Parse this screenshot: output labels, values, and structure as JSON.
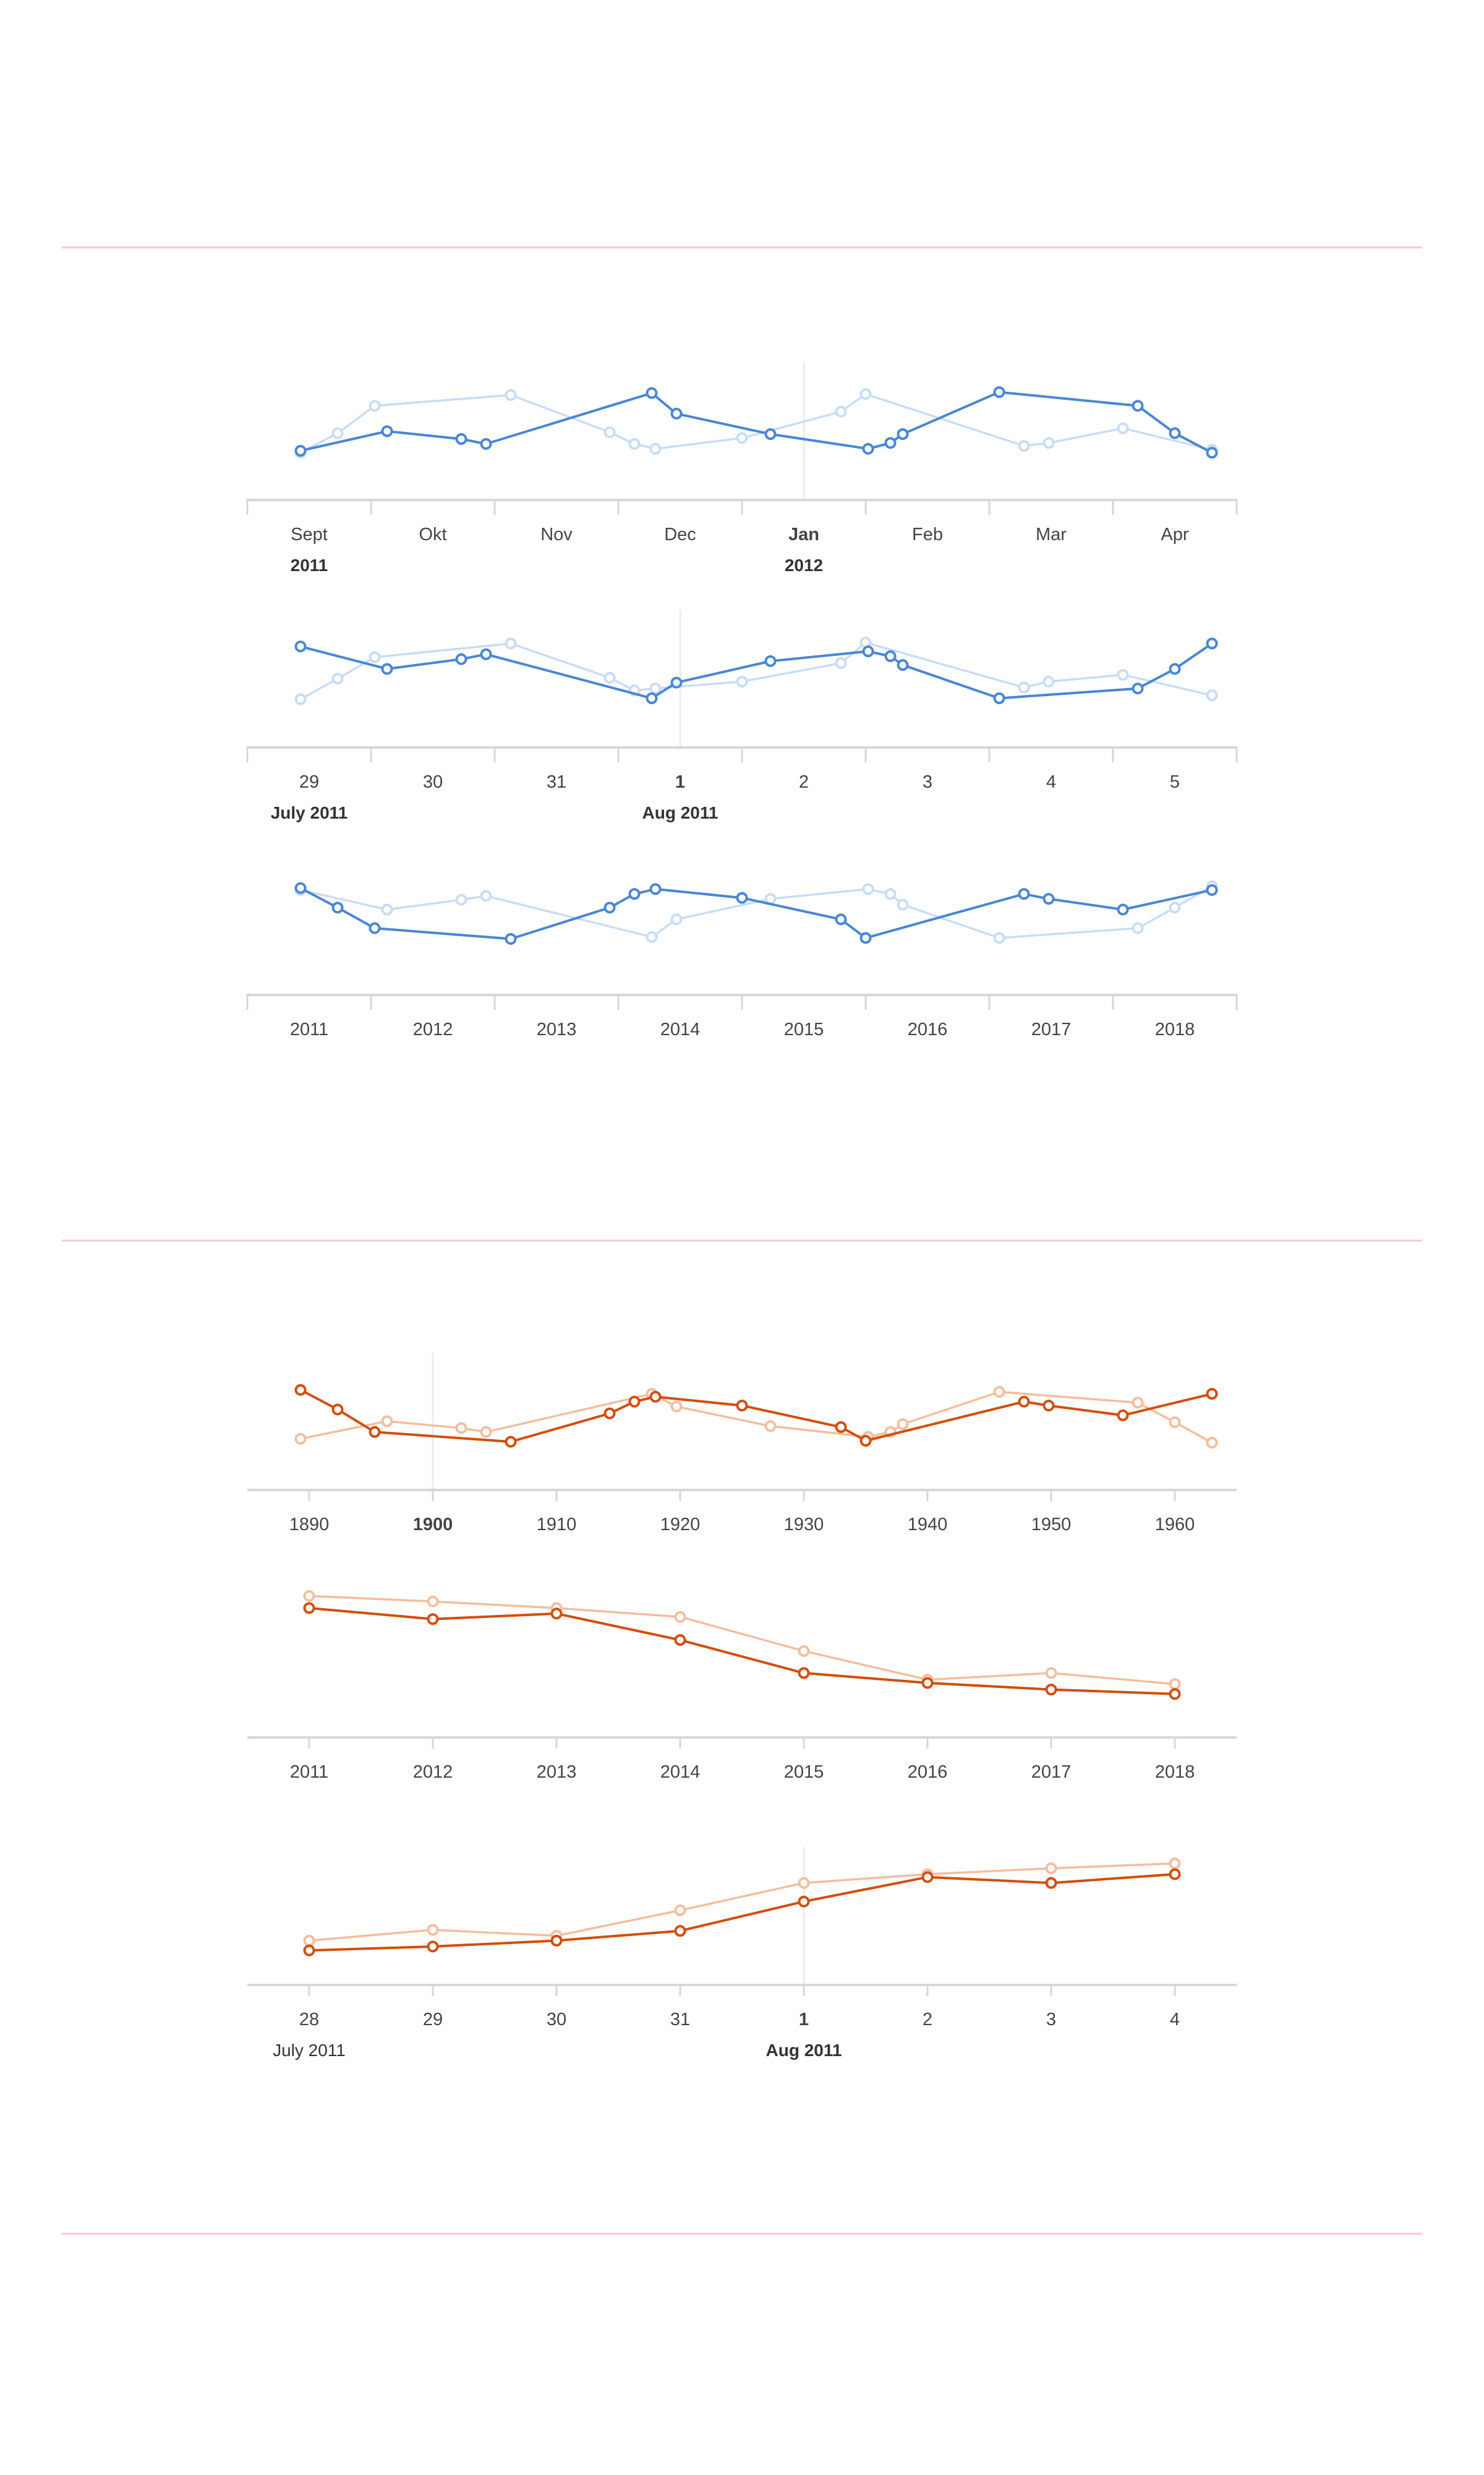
{
  "colors": {
    "separator": "#f3c9ce",
    "axis": "#d7d7d7",
    "refline": "#ececec",
    "tick_text": "#444444",
    "blue_main": "#4a86d4",
    "blue_faint": "#c9dcf6",
    "orange_main": "#d24e0b",
    "orange_faint": "#f2bea0"
  },
  "chart_data": [
    {
      "type": "line",
      "palette": "blue",
      "x_ticks": [
        "Sept",
        "Okt",
        "Nov",
        "Dec",
        "Jan",
        "Feb",
        "Mar",
        "Apr"
      ],
      "bold_ticks": [
        "Jan"
      ],
      "sub_labels": [
        {
          "at": "Sept",
          "text": "2011"
        },
        {
          "at": "Jan",
          "text": "2012"
        }
      ],
      "ylim": [
        0,
        100
      ],
      "ref_tick": "Jan",
      "series": [
        {
          "role": "main",
          "points": [
            [
              -0.07,
              25
            ],
            [
              0.63,
              45
            ],
            [
              1.23,
              37
            ],
            [
              1.43,
              32
            ],
            [
              2.77,
              84
            ],
            [
              2.97,
              63
            ],
            [
              3.73,
              42
            ],
            [
              4.52,
              27
            ],
            [
              4.7,
              33
            ],
            [
              4.8,
              42
            ],
            [
              5.58,
              85
            ],
            [
              6.7,
              71
            ],
            [
              7.0,
              43
            ],
            [
              7.3,
              23
            ]
          ]
        },
        {
          "role": "faint",
          "points": [
            [
              -0.07,
              23
            ],
            [
              0.23,
              43
            ],
            [
              0.53,
              71
            ],
            [
              1.63,
              82
            ],
            [
              2.43,
              44
            ],
            [
              2.63,
              32
            ],
            [
              2.8,
              27
            ],
            [
              3.5,
              38
            ],
            [
              4.3,
              65
            ],
            [
              4.5,
              83
            ],
            [
              5.78,
              30
            ],
            [
              5.98,
              33
            ],
            [
              6.58,
              48
            ],
            [
              7.3,
              26
            ]
          ]
        }
      ]
    },
    {
      "type": "line",
      "palette": "blue",
      "x_ticks": [
        "29",
        "30",
        "31",
        "1",
        "2",
        "3",
        "4",
        "5"
      ],
      "bold_ticks": [
        "1"
      ],
      "sub_labels": [
        {
          "at": "29",
          "text": "July 2011"
        },
        {
          "at": "1",
          "text": "Aug 2011"
        }
      ],
      "ylim": [
        0,
        100
      ],
      "ref_tick": "1",
      "series": [
        {
          "role": "main",
          "points": [
            [
              -0.07,
              78
            ],
            [
              0.63,
              55
            ],
            [
              1.23,
              65
            ],
            [
              1.43,
              70
            ],
            [
              2.77,
              25
            ],
            [
              2.97,
              41
            ],
            [
              3.73,
              63
            ],
            [
              4.52,
              73
            ],
            [
              4.7,
              68
            ],
            [
              4.8,
              59
            ],
            [
              5.58,
              25
            ],
            [
              6.7,
              35
            ],
            [
              7.0,
              55
            ],
            [
              7.3,
              81
            ]
          ]
        },
        {
          "role": "faint",
          "points": [
            [
              -0.07,
              24
            ],
            [
              0.23,
              45
            ],
            [
              0.53,
              67
            ],
            [
              1.63,
              81
            ],
            [
              2.43,
              46
            ],
            [
              2.63,
              33
            ],
            [
              2.8,
              35
            ],
            [
              3.5,
              42
            ],
            [
              4.3,
              61
            ],
            [
              4.5,
              82
            ],
            [
              5.78,
              36
            ],
            [
              5.98,
              42
            ],
            [
              6.58,
              49
            ],
            [
              7.3,
              28
            ]
          ]
        }
      ]
    },
    {
      "type": "line",
      "palette": "blue",
      "x_ticks": [
        "2011",
        "2012",
        "2013",
        "2014",
        "2015",
        "2016",
        "2017",
        "2018"
      ],
      "bold_ticks": [],
      "sub_labels": [],
      "ylim": [
        0,
        100
      ],
      "ref_tick": null,
      "series": [
        {
          "role": "main",
          "points": [
            [
              -0.07,
              84
            ],
            [
              0.23,
              64
            ],
            [
              0.53,
              43
            ],
            [
              1.63,
              32
            ],
            [
              2.43,
              64
            ],
            [
              2.63,
              78
            ],
            [
              2.8,
              83
            ],
            [
              3.5,
              74
            ],
            [
              4.3,
              52
            ],
            [
              4.5,
              33
            ],
            [
              5.78,
              78
            ],
            [
              5.98,
              73
            ],
            [
              6.58,
              62
            ],
            [
              7.3,
              82
            ]
          ]
        },
        {
          "role": "faint",
          "points": [
            [
              -0.07,
              82
            ],
            [
              0.63,
              62
            ],
            [
              1.23,
              72
            ],
            [
              1.43,
              76
            ],
            [
              2.77,
              34
            ],
            [
              2.97,
              52
            ],
            [
              3.73,
              73
            ],
            [
              4.52,
              83
            ],
            [
              4.7,
              78
            ],
            [
              4.8,
              67
            ],
            [
              5.58,
              33
            ],
            [
              6.7,
              43
            ],
            [
              7.0,
              64
            ],
            [
              7.3,
              86
            ]
          ]
        }
      ]
    },
    {
      "type": "line",
      "palette": "orange",
      "x_ticks": [
        "1890",
        "1900",
        "1910",
        "1920",
        "1930",
        "1940",
        "1950",
        "1960"
      ],
      "bold_ticks": [
        "1900"
      ],
      "sub_labels": [],
      "ylim": [
        0,
        100
      ],
      "ref_tick": "1900",
      "series": [
        {
          "role": "main",
          "points": [
            [
              -0.07,
              77
            ],
            [
              0.23,
              57
            ],
            [
              0.53,
              34
            ],
            [
              1.63,
              24
            ],
            [
              2.43,
              53
            ],
            [
              2.63,
              65
            ],
            [
              2.8,
              70
            ],
            [
              3.5,
              61
            ],
            [
              4.3,
              39
            ],
            [
              4.5,
              25
            ],
            [
              5.78,
              65
            ],
            [
              5.98,
              61
            ],
            [
              6.58,
              51
            ],
            [
              7.3,
              73
            ]
          ]
        },
        {
          "role": "faint",
          "points": [
            [
              -0.07,
              27
            ],
            [
              0.63,
              45
            ],
            [
              1.23,
              38
            ],
            [
              1.43,
              34
            ],
            [
              2.77,
              73
            ],
            [
              2.97,
              60
            ],
            [
              3.73,
              40
            ],
            [
              4.52,
              29
            ],
            [
              4.7,
              34
            ],
            [
              4.8,
              42
            ],
            [
              5.58,
              75
            ],
            [
              6.7,
              64
            ],
            [
              7.0,
              44
            ],
            [
              7.3,
              23
            ]
          ]
        }
      ]
    },
    {
      "type": "line",
      "palette": "orange",
      "x_ticks": [
        "2011",
        "2012",
        "2013",
        "2014",
        "2015",
        "2016",
        "2017",
        "2018"
      ],
      "bold_ticks": [],
      "sub_labels": [],
      "ylim": [
        0,
        100
      ],
      "ref_tick": null,
      "series": [
        {
          "role": "main",
          "points": [
            [
              0,
              95
            ],
            [
              1,
              85
            ],
            [
              2,
              90
            ],
            [
              3,
              66
            ],
            [
              4,
              36
            ],
            [
              5,
              27
            ],
            [
              6,
              21
            ],
            [
              7,
              17
            ]
          ]
        },
        {
          "role": "faint",
          "points": [
            [
              0,
              106
            ],
            [
              1,
              101
            ],
            [
              2,
              95
            ],
            [
              3,
              87
            ],
            [
              4,
              56
            ],
            [
              5,
              30
            ],
            [
              6,
              36
            ],
            [
              7,
              26
            ]
          ]
        }
      ]
    },
    {
      "type": "line",
      "palette": "orange",
      "x_ticks": [
        "28",
        "29",
        "30",
        "31",
        "1",
        "2",
        "3",
        "4"
      ],
      "bold_ticks": [
        "1"
      ],
      "sub_labels": [
        {
          "at": "28",
          "text": "July 2011"
        },
        {
          "at": "1",
          "text": "Aug 2011"
        }
      ],
      "ylim": [
        0,
        100
      ],
      "ref_tick": "1",
      "series": [
        {
          "role": "main",
          "points": [
            [
              0,
              10
            ],
            [
              1,
              14
            ],
            [
              2,
              20
            ],
            [
              3,
              30
            ],
            [
              4,
              60
            ],
            [
              5,
              85
            ],
            [
              6,
              79
            ],
            [
              7,
              88
            ]
          ]
        },
        {
          "role": "faint",
          "points": [
            [
              0,
              20
            ],
            [
              1,
              31
            ],
            [
              2,
              25
            ],
            [
              3,
              51
            ],
            [
              4,
              79
            ],
            [
              5,
              88
            ],
            [
              6,
              94
            ],
            [
              7,
              99
            ]
          ]
        }
      ]
    }
  ]
}
